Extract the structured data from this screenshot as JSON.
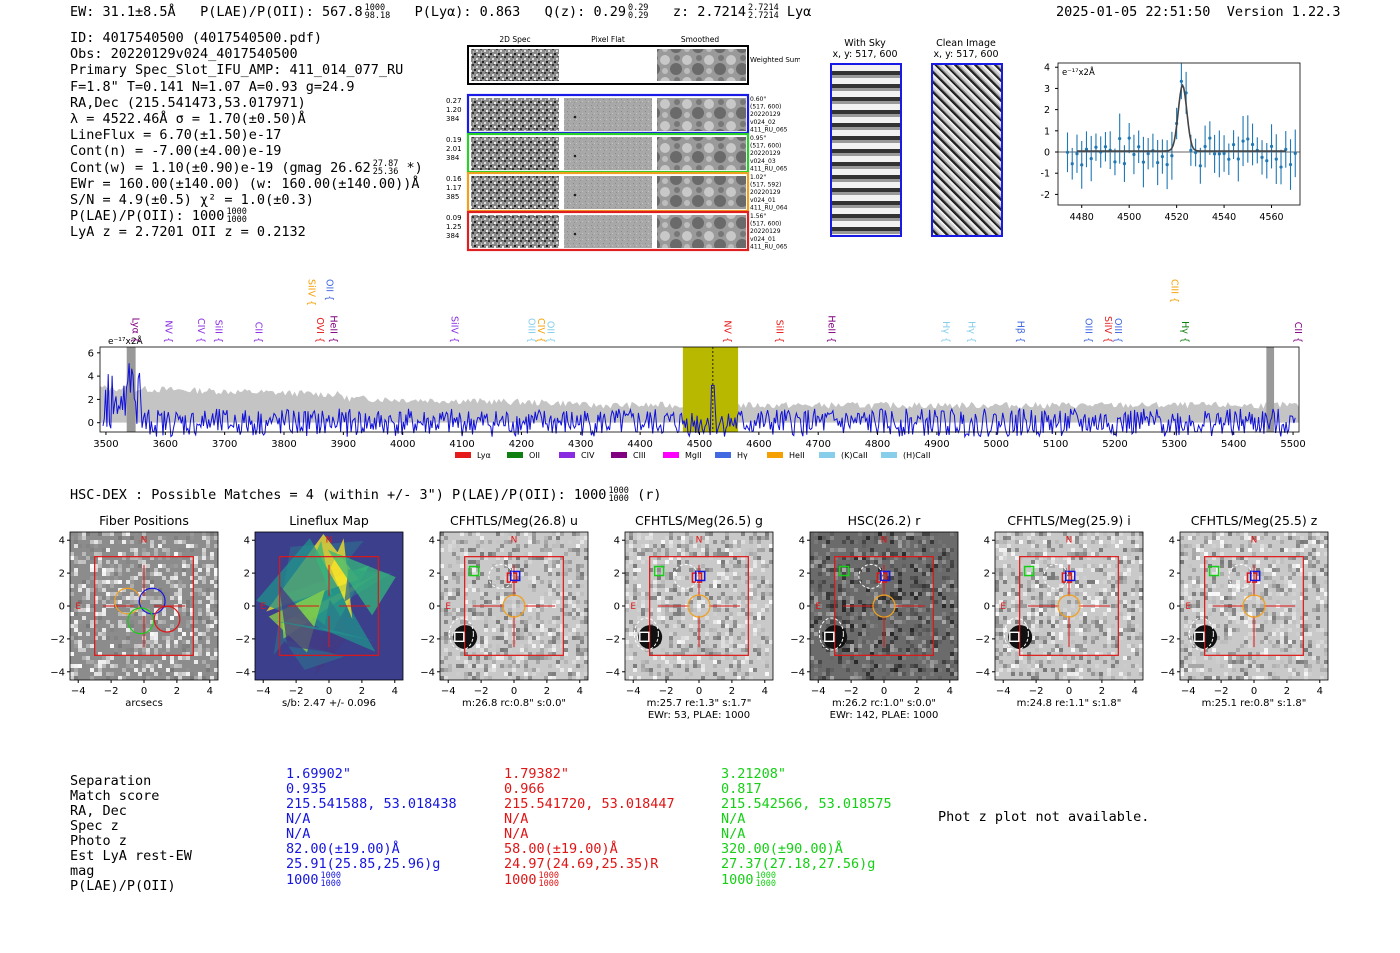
{
  "header": {
    "ew_text": "EW: 31.1±8.5Å",
    "plae_label": "P(LAE)/P(OII): 567.8",
    "plae_hi": "1000",
    "plae_lo": "98.18",
    "plya": "P(Lyα): 0.863",
    "qz_label": "Q(z): 0.29",
    "qz_hi": "0.29",
    "qz_lo": "0.29",
    "z_label": "z: 2.7214",
    "z_hi": "2.7214",
    "z_lo": "2.7214",
    "z_line": "Lyα",
    "datetime": "2025-01-05 22:51:50",
    "version": "Version 1.22.3"
  },
  "info": {
    "id": "ID: 4017540500 (4017540500.pdf)",
    "obs": "Obs: 20220129v024_4017540500",
    "primary": "Primary Spec_Slot_IFU_AMP: 411_014_077_RU",
    "fiber": "F=1.8\"  T=0.141  N=1.07  A=0.93  g=24.9",
    "radec": "RA,Dec (215.541473,53.017971)",
    "lambda": "λ = 4522.46Å  σ = 1.70(±0.50)Å",
    "lineflux": "LineFlux = 6.70(±1.50)e-17",
    "contn": "Cont(n) = -7.00(±4.00)e-19",
    "contw": "Cont(w) = 1.10(±0.90)e-19 (gmag 26.62",
    "contw_hi": "27.87",
    "contw_lo": "25.36",
    "contw_end": "*)",
    "ewr": "EWr = 160.00(±140.00) (w: 160.00(±140.00))Å",
    "sn": "S/N = 4.9(±0.5)  χ² = 1.0(±0.3)",
    "plae": "P(LAE)/P(OII): 1000",
    "plae_hi": "1000",
    "plae_lo": "1000",
    "lyaz": "LyA z = 2.7201  OII z = 0.2132"
  },
  "cutouts": {
    "col_titles": [
      "2D Spec",
      "Pixel Flat",
      "Smoothed"
    ],
    "weighted_sum": "Weighted Sum",
    "rows": [
      {
        "left": [
          "0.27",
          "1.20",
          "384"
        ],
        "right": [
          "0.60\"",
          "(517, 600)",
          "20220129",
          "v024_02",
          "411_RU_065"
        ],
        "color": "#1a1ae6"
      },
      {
        "left": [
          "0.19",
          "2.01",
          "384"
        ],
        "right": [
          "0.95\"",
          "(517, 600)",
          "20220129",
          "v024_03",
          "411_RU_065"
        ],
        "color": "#2ad02a"
      },
      {
        "left": [
          "0.16",
          "1.17",
          "385"
        ],
        "right": [
          "1.02\"",
          "(517, 592)",
          "20220129",
          "v024_01",
          "411_RU_064"
        ],
        "color": "#f0a020"
      },
      {
        "left": [
          "0.09",
          "1.25",
          "384"
        ],
        "right": [
          "1.56\"",
          "(517, 600)",
          "20220129",
          "v024_01",
          "411_RU_065"
        ],
        "color": "#e02020"
      }
    ],
    "with_sky_title": "With Sky",
    "with_sky_xy": "x, y: 517, 600",
    "clean_title": "Clean Image",
    "clean_xy": "x, y: 517, 600"
  },
  "zoom_plot": {
    "unit": "e⁻¹⁷x2Å",
    "xticks": [
      "4480",
      "4500",
      "4520",
      "4540",
      "4560"
    ],
    "yticks": [
      "4",
      "3",
      "2",
      "1",
      "0",
      "-1",
      "-2"
    ]
  },
  "spectrum": {
    "unit": "e⁻¹⁷x2Å",
    "xticks": [
      "3500",
      "3600",
      "3700",
      "3800",
      "3900",
      "4000",
      "4100",
      "4200",
      "4300",
      "4400",
      "4500",
      "4600",
      "4700",
      "4800",
      "4900",
      "5000",
      "5100",
      "5200",
      "5300",
      "5400",
      "5500"
    ],
    "yticks": [
      "6",
      "4",
      "2",
      "0"
    ],
    "legend": [
      {
        "label": "Lyα",
        "color": "#e51b1b"
      },
      {
        "label": "OII",
        "color": "#0f7f0f"
      },
      {
        "label": "CIV",
        "color": "#8a2be2"
      },
      {
        "label": "CIII",
        "color": "#800080"
      },
      {
        "label": "MgII",
        "color": "#ff00ff"
      },
      {
        "label": "Hγ",
        "color": "#4169e1"
      },
      {
        "label": "HeII",
        "color": "#f5a000"
      },
      {
        "label": "(K)CaII",
        "color": "#87ceeb"
      },
      {
        "label": "(H)CaII",
        "color": "#87ceeb"
      }
    ],
    "lines_top": [
      {
        "label": "SiIV",
        "color": "#f5a000"
      },
      {
        "label": "OII",
        "color": "#4169e1"
      },
      {
        "label": "CIII",
        "color": "#f5a000"
      }
    ],
    "lines_low": [
      {
        "label": "Lyα",
        "color": "#800080"
      },
      {
        "label": "NV",
        "color": "#8a2be2"
      },
      {
        "label": "CIV",
        "color": "#8a2be2"
      },
      {
        "label": "SiII",
        "color": "#8a2be2"
      },
      {
        "label": "CII",
        "color": "#8a2be2"
      },
      {
        "label": "OVI",
        "color": "#e51b1b"
      },
      {
        "label": "HeII",
        "color": "#800080"
      },
      {
        "label": "SiIV",
        "color": "#8a2be2"
      },
      {
        "label": "OIII",
        "color": "#87ceeb"
      },
      {
        "label": "CIV",
        "color": "#f5a000"
      },
      {
        "label": "OII",
        "color": "#87ceeb"
      },
      {
        "label": "NV",
        "color": "#e51b1b"
      },
      {
        "label": "SiII",
        "color": "#e51b1b"
      },
      {
        "label": "HeII",
        "color": "#800080"
      },
      {
        "label": "Hγ",
        "color": "#87ceeb"
      },
      {
        "label": "Hγ",
        "color": "#87ceeb"
      },
      {
        "label": "Hβ",
        "color": "#4169e1"
      },
      {
        "label": "OIII",
        "color": "#4169e1"
      },
      {
        "label": "SiIV",
        "color": "#e51b1b"
      },
      {
        "label": "OIII",
        "color": "#4169e1"
      },
      {
        "label": "Hγ",
        "color": "#0f7f0f"
      },
      {
        "label": "CII",
        "color": "#800080"
      }
    ]
  },
  "hsc": {
    "title": "HSC-DEX : Possible Matches = 4 (within +/- 3\")  P(LAE)/P(OII): 1000",
    "title_hi": "1000",
    "title_lo": "1000",
    "title_end": "(r)"
  },
  "panels": [
    {
      "title": "Fiber Positions",
      "cap1": "arcsecs",
      "cap2": "",
      "style": "fiber"
    },
    {
      "title": "Lineflux Map",
      "cap1": "s/b: 2.47 +/- 0.096",
      "cap2": "",
      "style": "flux"
    },
    {
      "title": "CFHTLS/Meg(26.8) u",
      "cap1": "m:26.8 rc:0.8\"  s:0.0\"",
      "cap2": "",
      "style": "light"
    },
    {
      "title": "CFHTLS/Meg(26.5) g",
      "cap1": "m:25.7  re:1.3\"  s:1.7\"",
      "cap2": "EWr: 53, PLAE: 1000",
      "style": "light"
    },
    {
      "title": "HSC(26.2) r",
      "cap1": "m:26.2 rc:1.0\"  s:0.0\"",
      "cap2": "EWr: 142, PLAE: 1000",
      "style": "dark"
    },
    {
      "title": "CFHTLS/Meg(25.9) i",
      "cap1": "m:24.8  re:1.1\"  s:1.8\"",
      "cap2": "",
      "style": "light"
    },
    {
      "title": "CFHTLS/Meg(25.5) z",
      "cap1": "m:25.1  re:0.8\"  s:1.8\"",
      "cap2": "",
      "style": "light"
    }
  ],
  "panel_axes": {
    "xticks": [
      "−4",
      "−2",
      "0",
      "2",
      "4"
    ],
    "yticks": [
      "4",
      "2",
      "0",
      "−2",
      "−4"
    ],
    "north": "N",
    "east": "E"
  },
  "matches": {
    "labels": [
      "Separation",
      "Match score",
      "RA, Dec",
      "Spec z",
      "Photo z",
      "Est LyA rest-EW",
      "mag",
      "P(LAE)/P(OII)"
    ],
    "columns": [
      {
        "color": "#1515e0",
        "values": [
          "1.69902\"",
          "0.935",
          "215.541588, 53.018438",
          "N/A",
          "N/A",
          "82.00(±19.00)Å",
          "25.91(25.85,25.96)g",
          "1000"
        ],
        "plae_hi": "1000",
        "plae_lo": "1000"
      },
      {
        "color": "#e01515",
        "values": [
          "1.79382\"",
          "0.966",
          "215.541720, 53.018447",
          "N/A",
          "N/A",
          "58.00(±19.00)Å",
          "24.97(24.69,25.35)R",
          "1000"
        ],
        "plae_hi": "1000",
        "plae_lo": "1000"
      },
      {
        "color": "#15d015",
        "values": [
          "3.21208\"",
          "0.817",
          "215.542566, 53.018575",
          "N/A",
          "N/A",
          "320.00(±90.00)Å",
          "27.37(27.18,27.56)g",
          "1000"
        ],
        "plae_hi": "1000",
        "plae_lo": "1000"
      }
    ],
    "photz_note": "Phot z plot not available."
  }
}
